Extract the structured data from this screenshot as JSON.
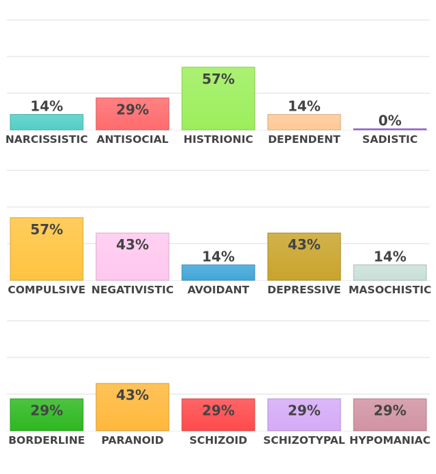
{
  "chart_data": [
    {
      "type": "bar",
      "ylim": [
        0,
        100
      ],
      "grid": true,
      "value_suffix": "%",
      "categories": [
        "NARCISSISTIC",
        "ANTISOCIAL",
        "HISTRIONIC",
        "DEPENDENT",
        "SADISTIC"
      ],
      "values": [
        14,
        29,
        57,
        14,
        0
      ],
      "colors": [
        "#52cfc5",
        "#ff6b6d",
        "#9cee5c",
        "#ffc996",
        "#a066e8"
      ]
    },
    {
      "type": "bar",
      "ylim": [
        0,
        100
      ],
      "grid": true,
      "value_suffix": "%",
      "categories": [
        "COMPULSIVE",
        "NEGATIVISTIC",
        "AVOIDANT",
        "DEPRESSIVE",
        "MASOCHISTIC"
      ],
      "values": [
        57,
        43,
        14,
        43,
        14
      ],
      "colors": [
        "#ffc440",
        "#ffc8ef",
        "#40a6d8",
        "#c9a42c",
        "#c9e0d7"
      ]
    },
    {
      "type": "bar",
      "ylim": [
        0,
        100
      ],
      "grid": true,
      "value_suffix": "%",
      "categories": [
        "BORDERLINE",
        "PARANOID",
        "SCHIZOID",
        "SCHIZOTYPAL",
        "HYPOMANIAC"
      ],
      "values": [
        29,
        43,
        29,
        29,
        29
      ],
      "colors": [
        "#2db81f",
        "#ffb83c",
        "#ff4a4c",
        "#d5aaf8",
        "#d193a3"
      ]
    }
  ]
}
